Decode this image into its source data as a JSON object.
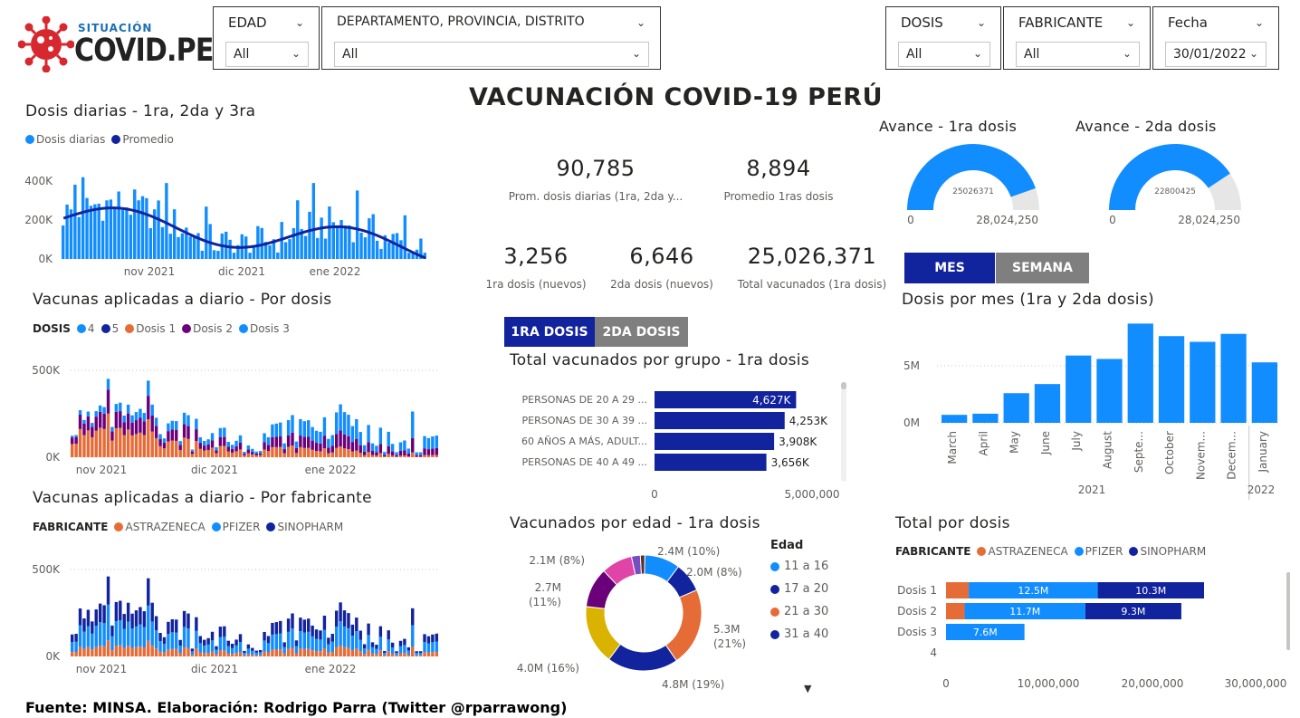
{
  "logo": {
    "top_text": "SITUACIÓN",
    "main_text": "COVID.PE"
  },
  "page_title": "VACUNACIÓN COVID-19 PERÚ",
  "slicers": {
    "edad": {
      "label": "EDAD",
      "value": "All"
    },
    "ubicacion": {
      "label": "DEPARTAMENTO, PROVINCIA, DISTRITO",
      "value": "All"
    },
    "dosis": {
      "label": "DOSIS",
      "value": "All"
    },
    "fabricante": {
      "label": "FABRICANTE",
      "value": "All"
    },
    "fecha": {
      "label": "Fecha",
      "value": "30/01/2022"
    }
  },
  "colors": {
    "blue": "#118dff",
    "navy": "#12239e",
    "orange": "#e66c37",
    "purple": "#6b007b",
    "pink": "#e044a7",
    "gold": "#d9b300",
    "violet": "#744ec2",
    "brown": "#5c2e23",
    "gray": "#e6e6e6",
    "btn_active": "#12239e",
    "btn_inactive": "#7f7f7f"
  },
  "chart1": {
    "title": "Dosis diarias - 1ra, 2da y 3ra",
    "legend": [
      "Dosis diarias",
      "Promedio"
    ],
    "yticks": [
      "400K",
      "200K",
      "0K"
    ],
    "xticks": [
      "nov 2021",
      "dic 2021",
      "ene 2022"
    ]
  },
  "chart2": {
    "title": "Vacunas aplicadas a diario - Por dosis",
    "legend_title": "DOSIS",
    "legend": [
      "4",
      "5",
      "Dosis 1",
      "Dosis 2",
      "Dosis 3"
    ],
    "yticks": [
      "500K",
      "0K"
    ],
    "xticks": [
      "nov 2021",
      "dic 2021",
      "ene 2022"
    ]
  },
  "chart3": {
    "title": "Vacunas aplicadas a diario - Por fabricante",
    "legend_title": "FABRICANTE",
    "legend": [
      "ASTRAZENECA",
      "PFIZER",
      "SINOPHARM"
    ],
    "yticks": [
      "500K",
      "0K"
    ],
    "xticks": [
      "nov 2021",
      "dic 2021",
      "ene 2022"
    ]
  },
  "kpis": {
    "prom_diarias": {
      "value": "90,785",
      "label": "Prom. dosis diarias (1ra, 2da y..."
    },
    "prom_1ras": {
      "value": "8,894",
      "label": "Promedio 1ras dosis"
    },
    "dosis1_nuevos": {
      "value": "3,256",
      "label": "1ra dosis (nuevos)"
    },
    "dosis2_nuevos": {
      "value": "6,646",
      "label": "2da dosis (nuevos)"
    },
    "total_vacunados": {
      "value": "25,026,371",
      "label": "Total vacunados (1ra dosis)"
    }
  },
  "gauges": [
    {
      "title": "Avance - 1ra dosis",
      "value_label": "25026371",
      "min": "0",
      "max": "28,024,250",
      "value": 25026371,
      "target": 28024250
    },
    {
      "title": "Avance - 2da dosis",
      "value_label": "22800425",
      "min": "0",
      "max": "28,024,250",
      "value": 22800425,
      "target": 28024250
    }
  ],
  "buttons": {
    "mes": "MES",
    "semana": "SEMANA",
    "dosis1": "1RA DOSIS",
    "dosis2": "2DA DOSIS"
  },
  "group_chart": {
    "title": "Total vacunados por grupo - 1ra dosis",
    "categories": [
      "PERSONAS DE 20 A 29 ...",
      "PERSONAS DE 30 A 39 ...",
      "60 AÑOS A MÁS, ADULT...",
      "PERSONAS DE 40 A 49 ..."
    ],
    "value_labels": [
      "4,627K",
      "4,253K",
      "3,908K",
      "3,656K"
    ],
    "values": [
      4627000,
      4253000,
      3908000,
      3656000
    ],
    "xticks": [
      "0",
      "5,000,000"
    ],
    "xmax": 5000000
  },
  "donut": {
    "title": "Vacunados por edad - 1ra dosis",
    "legend_title": "Edad",
    "legend": [
      "11 a 16",
      "17 a 20",
      "21 a 30",
      "31 a 40"
    ],
    "slices": [
      {
        "value": 2.4,
        "label": "2.4M (10%)",
        "color": "#118dff"
      },
      {
        "value": 2.0,
        "label": "2.0M (8%)",
        "color": "#12239e"
      },
      {
        "value": 5.3,
        "label": "5.3M (21%)",
        "color": "#e66c37"
      },
      {
        "value": 4.8,
        "label": "4.8M (19%)",
        "color": "#12239e"
      },
      {
        "value": 4.0,
        "label": "4.0M (16%)",
        "color": "#d9b300"
      },
      {
        "value": 2.7,
        "label": "2.7M (11%)",
        "color": "#6b007b"
      },
      {
        "value": 2.1,
        "label": "2.1M (8%)",
        "color": "#e044a7"
      },
      {
        "value": 0.6,
        "label": "",
        "color": "#744ec2"
      },
      {
        "value": 0.3,
        "label": "",
        "color": "#5c2e23"
      }
    ]
  },
  "monthly_chart": {
    "title": "Dosis por mes (1ra y 2da dosis)",
    "categories": [
      "March",
      "April",
      "May",
      "June",
      "July",
      "August",
      "Septe...",
      "October",
      "Novem...",
      "Decem...",
      "January"
    ],
    "values": [
      0.7,
      0.8,
      2.6,
      3.4,
      5.9,
      5.6,
      8.7,
      7.6,
      7.1,
      7.8,
      5.3
    ],
    "yticks": [
      "5M",
      "0M"
    ],
    "years": [
      "2021",
      "2022"
    ]
  },
  "total_dosis_chart": {
    "title": "Total por dosis",
    "legend_title": "FABRICANTE",
    "legend": [
      "ASTRAZENECA",
      "PFIZER",
      "SINOPHARM"
    ],
    "categories": [
      "Dosis 1",
      "Dosis 2",
      "Dosis 3",
      "4"
    ],
    "astrazeneca": [
      2.2,
      1.8,
      0.0,
      0.0
    ],
    "pfizer": [
      12.5,
      11.7,
      7.6,
      0.0
    ],
    "sinopharm": [
      10.3,
      9.3,
      0.0,
      0.0
    ],
    "pfizer_labels": [
      "12.5M",
      "11.7M",
      "7.6M",
      ""
    ],
    "sinopharm_labels": [
      "10.3M",
      "9.3M",
      "",
      ""
    ],
    "xticks": [
      "0",
      "10,000,000",
      "20,000,000",
      "30,000,000"
    ],
    "xmax": 30
  },
  "footer": "Fuente: MINSA. Elaboración: Rodrigo Parra (Twitter @rparrawong)"
}
